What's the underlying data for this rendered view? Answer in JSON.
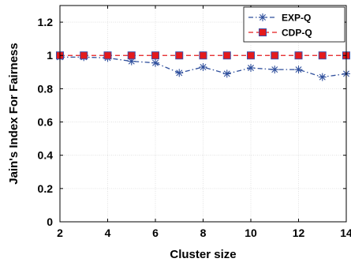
{
  "chart_data": {
    "type": "line",
    "title": "",
    "xlabel": "Cluster size",
    "ylabel": "Jain's Index For Fairness",
    "xlim": [
      2,
      14
    ],
    "ylim": [
      0,
      1.3
    ],
    "xticks": [
      2,
      4,
      6,
      8,
      10,
      12,
      14
    ],
    "yticks": [
      0,
      0.2,
      0.4,
      0.6,
      0.8,
      1,
      1.2
    ],
    "grid": true,
    "legend_position": "top-right",
    "x": [
      2,
      3,
      4,
      5,
      6,
      7,
      8,
      9,
      10,
      11,
      12,
      13,
      14
    ],
    "series": [
      {
        "name": "EXP-Q",
        "color": "#2f4f9c",
        "line_style": "dash-dot",
        "marker": "asterisk",
        "values": [
          0.99,
          0.99,
          0.985,
          0.965,
          0.955,
          0.895,
          0.93,
          0.89,
          0.925,
          0.915,
          0.915,
          0.87,
          0.89
        ]
      },
      {
        "name": "CDP-Q",
        "color": "#e41a1c",
        "marker_color": "#3f4fa8",
        "line_style": "dashed",
        "marker": "square",
        "values": [
          1,
          1,
          1,
          1,
          1,
          1,
          1,
          1,
          1,
          1,
          1,
          1,
          1
        ]
      }
    ]
  }
}
